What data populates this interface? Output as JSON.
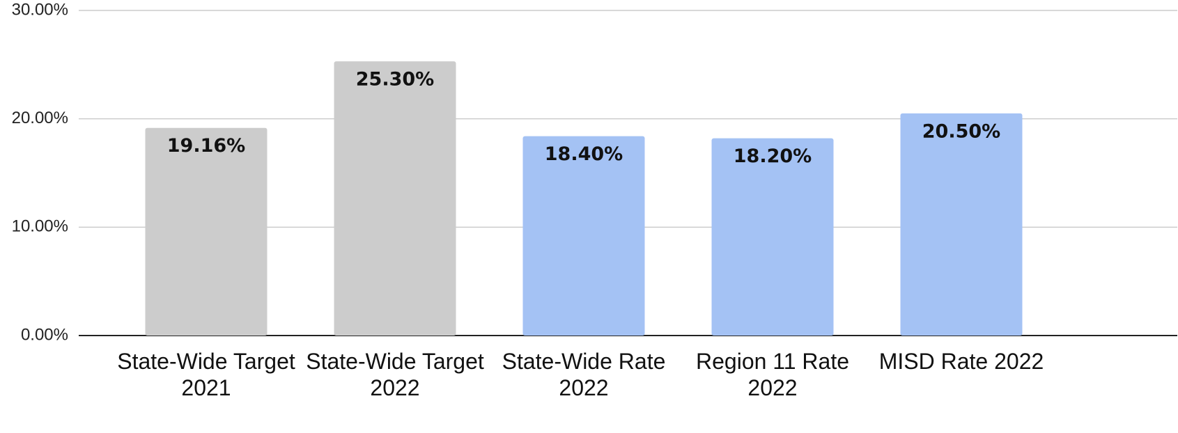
{
  "chart_data": {
    "type": "bar",
    "categories": [
      "State-Wide Target 2021",
      "State-Wide Target 2022",
      "State-Wide Rate 2022",
      "Region 11 Rate 2022",
      "MISD Rate 2022"
    ],
    "values": [
      19.16,
      25.3,
      18.4,
      18.2,
      20.5
    ],
    "value_labels": [
      "19.16%",
      "25.30%",
      "18.40%",
      "18.20%",
      "20.50%"
    ],
    "colors": [
      "#cccccc",
      "#cccccc",
      "#a4c2f4",
      "#a4c2f4",
      "#a4c2f4"
    ],
    "ylim": [
      0,
      30
    ],
    "yticks": [
      {
        "value": 0,
        "label": "0.00%"
      },
      {
        "value": 10,
        "label": "10.00%"
      },
      {
        "value": 20,
        "label": "20.00%"
      },
      {
        "value": 30,
        "label": "30.00%"
      }
    ],
    "grid": true
  }
}
